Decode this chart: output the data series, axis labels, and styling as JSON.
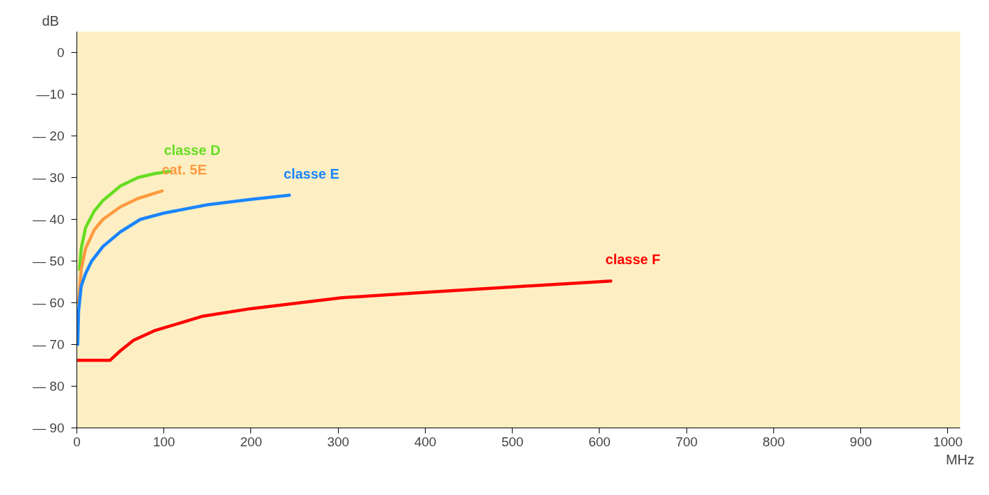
{
  "chart_data": {
    "type": "line",
    "xlabel": "MHz",
    "ylabel": "dB",
    "xlim": [
      0,
      1014
    ],
    "ylim": [
      -90,
      5
    ],
    "xticks": [
      0,
      100,
      200,
      300,
      400,
      500,
      600,
      700,
      800,
      900,
      1000
    ],
    "yticks": [
      0,
      {
        "value": -10,
        "label": "—10"
      },
      {
        "value": -20,
        "label": "— 20"
      },
      {
        "value": -30,
        "label": "— 30"
      },
      {
        "value": -40,
        "label": "— 40"
      },
      {
        "value": -50,
        "label": "— 50"
      },
      {
        "value": -60,
        "label": "— 60"
      },
      {
        "value": -70,
        "label": "— 70"
      },
      {
        "value": -80,
        "label": "— 80"
      },
      {
        "value": -90,
        "label": "— 90"
      }
    ],
    "grid": false,
    "legend": false,
    "marker": "none",
    "line_style": "solid",
    "series": [
      {
        "name": "classe D",
        "color": "#66dd22",
        "x": [
          3,
          5,
          10,
          20,
          30,
          50,
          70,
          90,
          107
        ],
        "values": [
          -52,
          -47,
          -42,
          -38,
          -35.5,
          -32,
          -30,
          -29,
          -28.5
        ]
      },
      {
        "name": "cat. 5E",
        "color": "#ff9a40",
        "x": [
          2,
          5,
          10,
          20,
          30,
          50,
          70,
          98
        ],
        "values": [
          -60,
          -52,
          -47,
          -42.5,
          -40,
          -37,
          -35,
          -33.2
        ]
      },
      {
        "name": "classe E",
        "color": "#1a85ff",
        "x": [
          1,
          2,
          5,
          10,
          17,
          30,
          50,
          73,
          100,
          150,
          200,
          244
        ],
        "values": [
          -70,
          -62,
          -56,
          -53,
          -50,
          -46.5,
          -43,
          -40,
          -38.5,
          -36.5,
          -35.2,
          -34.2
        ]
      },
      {
        "name": "classe F",
        "color": "#ff0000",
        "x": [
          0,
          38,
          50,
          65,
          89,
          145,
          200,
          304,
          400,
          500,
          613
        ],
        "values": [
          -73.8,
          -73.8,
          -71.5,
          -69,
          -66.7,
          -63.2,
          -61.4,
          -58.8,
          -57.5,
          -56.2,
          -54.8
        ]
      }
    ]
  }
}
